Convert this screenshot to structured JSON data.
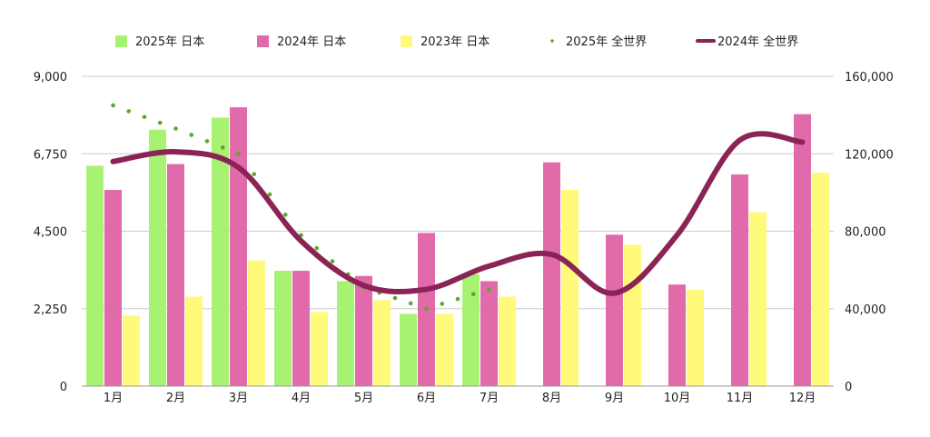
{
  "chart_data": {
    "type": "bar",
    "categories": [
      "1月",
      "2月",
      "3月",
      "4月",
      "5月",
      "6月",
      "7月",
      "8月",
      "9月",
      "10月",
      "11月",
      "12月"
    ],
    "series": [
      {
        "name": "2025年 日本",
        "type": "bar",
        "axis": "left",
        "color": "#a8f272",
        "values": [
          6400,
          7450,
          7800,
          3350,
          3050,
          2100,
          3250,
          null,
          null,
          null,
          null,
          null
        ]
      },
      {
        "name": "2024年 日本",
        "type": "bar",
        "axis": "left",
        "color": "#e06aaa",
        "values": [
          5700,
          6450,
          8100,
          3350,
          3200,
          4450,
          3050,
          6500,
          4400,
          2950,
          6150,
          7900
        ]
      },
      {
        "name": "2023年 日本",
        "type": "bar",
        "axis": "left",
        "color": "#fff97c",
        "values": [
          2050,
          2600,
          3650,
          2150,
          2500,
          2100,
          2600,
          5700,
          4100,
          2800,
          5050,
          6200
        ]
      },
      {
        "name": "2025年 全世界",
        "type": "line",
        "style": "dotted",
        "axis": "right",
        "color": "#5aa832",
        "values": [
          145000,
          133000,
          120000,
          78000,
          51000,
          40000,
          50000,
          null,
          null,
          null,
          null,
          null
        ]
      },
      {
        "name": "2024年 全世界",
        "type": "line",
        "style": "smooth",
        "axis": "right",
        "color": "#8b2456",
        "values": [
          116000,
          121000,
          113000,
          75000,
          52000,
          50000,
          62000,
          68000,
          48000,
          78000,
          127000,
          126000
        ]
      }
    ],
    "y_left": {
      "min": 0,
      "max": 9000,
      "ticks": [
        "0",
        "2,250",
        "4,500",
        "6,750",
        "9,000"
      ]
    },
    "y_right": {
      "min": 0,
      "max": 160000,
      "ticks": [
        "0",
        "40,000",
        "80,000",
        "120,000",
        "160,000"
      ]
    },
    "grid": true,
    "legend_position": "top"
  }
}
